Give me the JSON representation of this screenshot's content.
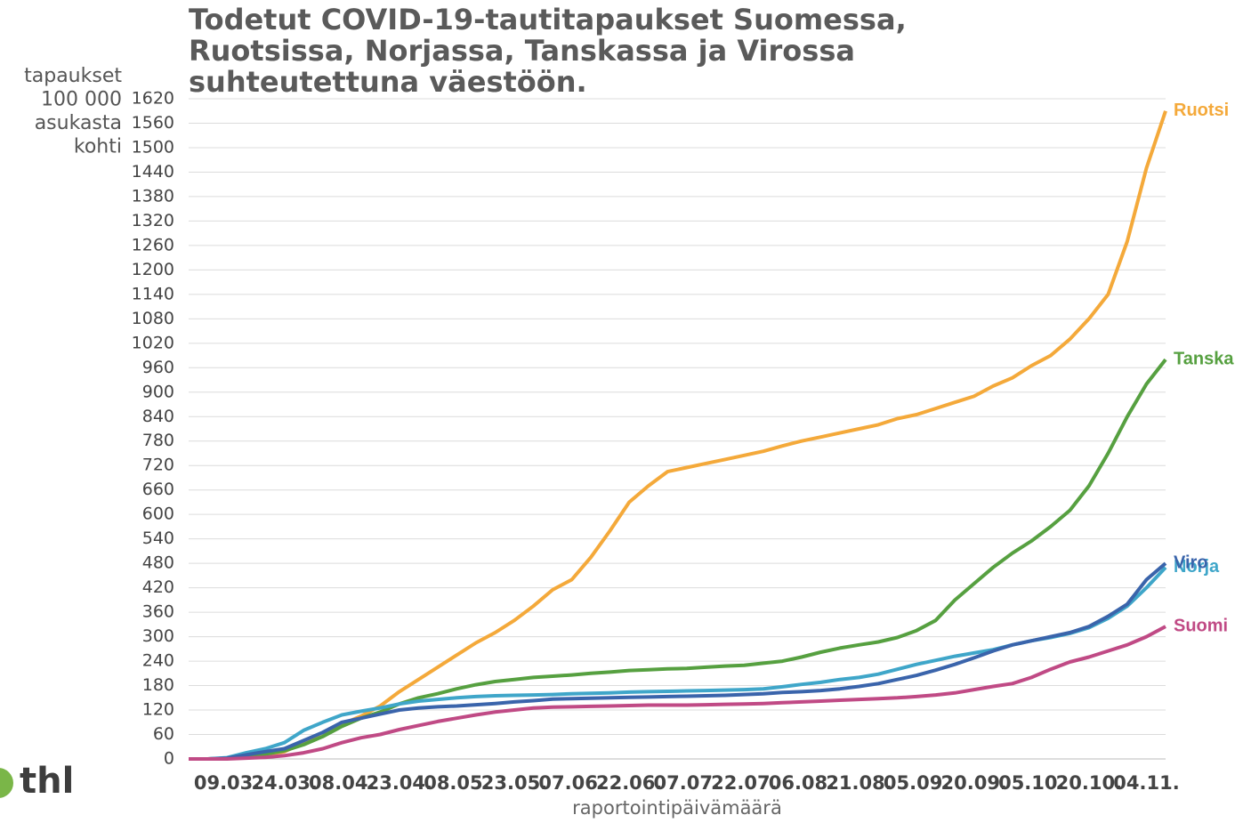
{
  "chart_data": {
    "type": "line",
    "title": [
      "Todetut COVID-19-tautitapaukset Suomessa,",
      "Ruotsissa, Norjassa, Tanskassa ja Virossa",
      "suhteutettuna väestöön."
    ],
    "y_label": [
      "tapaukset",
      "100 000",
      "asukasta",
      "kohti"
    ],
    "x_label": "raportointipäivämäärä",
    "logo": "thl",
    "categories": [
      null,
      null,
      "09.03.",
      null,
      null,
      "24.03.",
      null,
      null,
      "08.04.",
      null,
      null,
      "23.04.",
      null,
      null,
      "08.05.",
      null,
      null,
      "23.05.",
      null,
      null,
      "07.06.",
      null,
      null,
      "22.06.",
      null,
      null,
      "07.07.",
      null,
      null,
      "22.07.",
      null,
      null,
      "06.08.",
      null,
      null,
      "21.08.",
      null,
      null,
      "05.09.",
      null,
      null,
      "20.09.",
      null,
      null,
      "05.10.",
      null,
      null,
      "20.10.",
      null,
      null,
      "04.11.",
      null
    ],
    "ylim": [
      0,
      1620
    ],
    "yticks": [
      0,
      60,
      120,
      180,
      240,
      300,
      360,
      420,
      480,
      540,
      600,
      660,
      720,
      780,
      840,
      900,
      960,
      1020,
      1080,
      1140,
      1200,
      1260,
      1320,
      1380,
      1440,
      1500,
      1560,
      1620
    ],
    "grid": true,
    "series": [
      {
        "name": "Ruotsi",
        "color": "#f4a93a",
        "values": [
          0,
          0,
          1,
          4,
          10,
          18,
          40,
          55,
          85,
          105,
          130,
          165,
          195,
          225,
          255,
          285,
          310,
          340,
          375,
          415,
          440,
          495,
          560,
          630,
          670,
          705,
          715,
          725,
          735,
          745,
          755,
          768,
          780,
          790,
          800,
          810,
          820,
          835,
          845,
          860,
          875,
          890,
          915,
          935,
          965,
          990,
          1030,
          1080,
          1140,
          1270,
          1450,
          1590
        ]
      },
      {
        "name": "Tanska",
        "color": "#56a040",
        "values": [
          0,
          0,
          1,
          5,
          12,
          20,
          35,
          55,
          80,
          100,
          115,
          135,
          150,
          160,
          172,
          182,
          190,
          195,
          200,
          203,
          206,
          210,
          213,
          217,
          219,
          221,
          222,
          225,
          228,
          230,
          235,
          240,
          250,
          262,
          272,
          280,
          287,
          298,
          315,
          340,
          390,
          430,
          470,
          505,
          535,
          570,
          610,
          670,
          750,
          840,
          920,
          980
        ]
      },
      {
        "name": "Norja",
        "color": "#3fa6c9",
        "values": [
          0,
          0,
          3,
          15,
          25,
          40,
          70,
          90,
          108,
          117,
          125,
          135,
          142,
          146,
          150,
          153,
          155,
          156,
          157,
          158,
          160,
          161,
          162,
          164,
          165,
          166,
          167,
          168,
          169,
          170,
          172,
          177,
          183,
          188,
          195,
          200,
          208,
          220,
          232,
          242,
          252,
          260,
          268,
          280,
          290,
          298,
          308,
          322,
          345,
          375,
          420,
          470
        ]
      },
      {
        "name": "Viro",
        "color": "#3a64ab",
        "values": [
          0,
          0,
          2,
          10,
          18,
          25,
          45,
          65,
          90,
          100,
          110,
          120,
          125,
          128,
          130,
          133,
          136,
          140,
          143,
          147,
          148,
          149,
          150,
          151,
          152,
          153,
          154,
          155,
          156,
          158,
          160,
          163,
          165,
          168,
          172,
          178,
          185,
          195,
          205,
          218,
          232,
          248,
          265,
          280,
          290,
          300,
          310,
          325,
          350,
          380,
          440,
          480
        ]
      },
      {
        "name": "Suomi",
        "color": "#c04a85",
        "values": [
          0,
          0,
          0,
          2,
          4,
          8,
          15,
          25,
          40,
          52,
          60,
          72,
          82,
          92,
          100,
          108,
          115,
          120,
          125,
          127,
          128,
          129,
          130,
          131,
          132,
          132,
          132,
          133,
          134,
          135,
          136,
          138,
          140,
          142,
          144,
          146,
          148,
          150,
          153,
          157,
          162,
          170,
          178,
          185,
          200,
          220,
          238,
          250,
          265,
          280,
          300,
          325
        ]
      }
    ]
  }
}
